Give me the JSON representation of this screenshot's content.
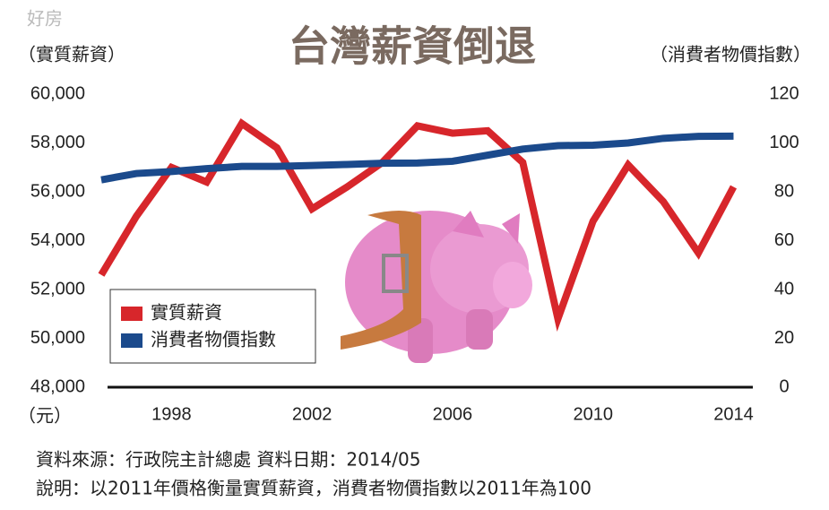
{
  "chart_data": {
    "type": "line",
    "title": "台灣薪資倒退",
    "logo": "好房",
    "y_label": "（實質薪資）",
    "y2_label": "（消費者物價指數）",
    "y_unit": "（元）",
    "source": "資料來源：行政院主計總處 資料日期：2014/05",
    "note": "說明：以2011年價格衡量實質薪資，消費者物價指數以2011年為100",
    "x": [
      1996,
      1997,
      1998,
      1999,
      2000,
      2001,
      2002,
      2003,
      2004,
      2005,
      2006,
      2007,
      2008,
      2009,
      2010,
      2011,
      2012,
      2013,
      2014
    ],
    "xlim": [
      1996,
      2014.6
    ],
    "xticks": [
      1998,
      2002,
      2006,
      2010,
      2014
    ],
    "ylim": [
      48000,
      60000
    ],
    "yticks": [
      {
        "value": 48000,
        "label": "48,000"
      },
      {
        "value": 50000,
        "label": "50,000"
      },
      {
        "value": 52000,
        "label": "52,000"
      },
      {
        "value": 54000,
        "label": "54,000"
      },
      {
        "value": 56000,
        "label": "56,000"
      },
      {
        "value": 58000,
        "label": "58,000"
      },
      {
        "value": 60000,
        "label": "60,000"
      }
    ],
    "y2lim": [
      0,
      120
    ],
    "y2ticks": [
      0,
      20,
      40,
      60,
      80,
      100,
      120
    ],
    "legend": "bottom-left",
    "series": [
      {
        "name": "實質薪資",
        "color": "#d7262b",
        "values": [
          52600,
          55000,
          57000,
          56400,
          58800,
          57800,
          55300,
          56200,
          57200,
          58700,
          58400,
          58500,
          57200,
          50800,
          54800,
          57100,
          55600,
          53500,
          56200
        ]
      },
      {
        "name": "消費者物價指數",
        "color": "#1b4a8c",
        "axis": "y2",
        "values": [
          84.9,
          87.5,
          88.3,
          89.5,
          90.4,
          90.4,
          90.8,
          91.2,
          91.7,
          91.8,
          92.5,
          95,
          97.5,
          98.9,
          99.1,
          100,
          101.9,
          102.7,
          102.8
        ]
      }
    ]
  }
}
